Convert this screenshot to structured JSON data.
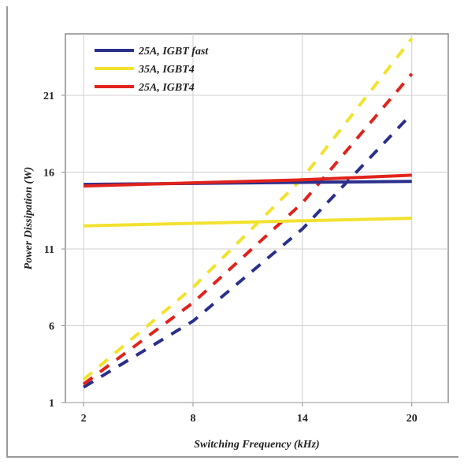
{
  "chart_data": {
    "type": "line",
    "xlabel": "Switching Frequency (kHz)",
    "ylabel": "Power Dissipation (W)",
    "xlim": [
      1,
      22
    ],
    "ylim": [
      1,
      25
    ],
    "xticks": [
      2,
      8,
      14,
      20
    ],
    "yticks": [
      1,
      6,
      11,
      16,
      21
    ],
    "grid": true,
    "legend_position": "top-left",
    "legend": [
      {
        "label": "25A, IGBT fast",
        "color": "#2a2f8c"
      },
      {
        "label": "35A, IGBT4",
        "color": "#f2e22e"
      },
      {
        "label": "25A, IGBT4",
        "color": "#e0231c"
      }
    ],
    "series": [
      {
        "name": "25A, IGBT fast",
        "style": "solid",
        "color": "#2a2f8c",
        "x": [
          2,
          20
        ],
        "y": [
          15.2,
          15.4
        ]
      },
      {
        "name": "35A, IGBT4",
        "style": "solid",
        "color": "#f2e22e",
        "x": [
          2,
          20
        ],
        "y": [
          12.5,
          13.0
        ]
      },
      {
        "name": "25A, IGBT4",
        "style": "solid",
        "color": "#e0231c",
        "x": [
          2,
          8,
          14,
          20
        ],
        "y": [
          15.1,
          15.3,
          15.5,
          15.8
        ]
      },
      {
        "name": "25A, IGBT fast",
        "style": "dashed",
        "color": "#2a2f8c",
        "x": [
          2,
          8,
          14,
          20
        ],
        "y": [
          2.0,
          6.3,
          12.3,
          19.8
        ]
      },
      {
        "name": "35A, IGBT4",
        "style": "dashed",
        "color": "#f2e22e",
        "x": [
          2,
          8,
          14,
          20
        ],
        "y": [
          2.5,
          8.5,
          15.6,
          24.7
        ]
      },
      {
        "name": "25A, IGBT4",
        "style": "dashed",
        "color": "#e0231c",
        "x": [
          2,
          8,
          14,
          20
        ],
        "y": [
          2.2,
          7.5,
          14.0,
          22.4
        ]
      }
    ]
  }
}
